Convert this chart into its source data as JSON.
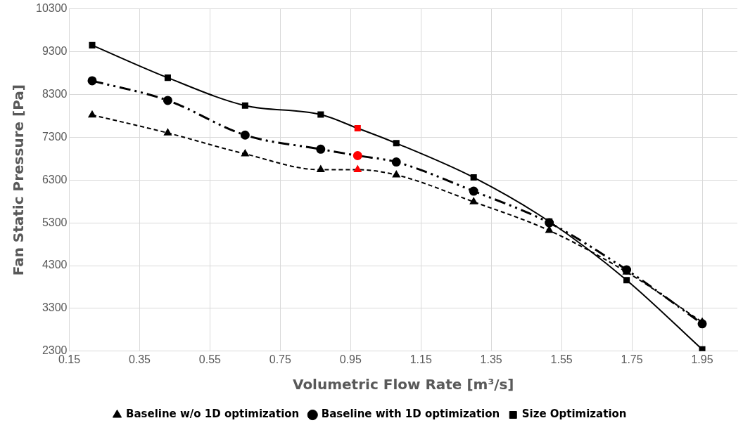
{
  "chart_data": {
    "type": "line",
    "xlabel": "Volumetric Flow Rate [m³/s]",
    "ylabel": "Fan Static Pressure [Pa]",
    "xlim": [
      0.15,
      2.05
    ],
    "xticks": [
      0.15,
      0.35,
      0.55,
      0.75,
      0.95,
      1.15,
      1.35,
      1.55,
      1.75,
      1.95
    ],
    "ylim": [
      2300,
      10300
    ],
    "yticks": [
      2300,
      3300,
      4300,
      5300,
      6300,
      7300,
      8300,
      9300,
      10300
    ],
    "grid": true,
    "legend": "bottom",
    "series": [
      {
        "name": "Baseline w/o 1D optimization",
        "color": "#000000",
        "marker": "triangle",
        "line_style": "dashed",
        "x": [
          0.215,
          0.43,
          0.65,
          0.865,
          0.97,
          1.08,
          1.3,
          1.515,
          1.735,
          1.95
        ],
        "values": [
          7820,
          7400,
          6910,
          6540,
          6540,
          6420,
          5790,
          5120,
          4150,
          2980
        ],
        "colors": [
          "#000000",
          "#000000",
          "#000000",
          "#000000",
          "#ff0000",
          "#000000",
          "#000000",
          "#000000",
          "#000000",
          "#000000"
        ]
      },
      {
        "name": "Baseline with 1D optimization",
        "color": "#000000",
        "marker": "circle",
        "line_style": "dashdot",
        "x": [
          0.215,
          0.43,
          0.65,
          0.865,
          0.97,
          1.08,
          1.3,
          1.515,
          1.735,
          1.95
        ],
        "values": [
          8620,
          8160,
          7350,
          7020,
          6870,
          6720,
          6040,
          5300,
          4200,
          2940
        ],
        "colors": [
          "#000000",
          "#000000",
          "#000000",
          "#000000",
          "#ff0000",
          "#000000",
          "#000000",
          "#000000",
          "#000000",
          "#000000"
        ]
      },
      {
        "name": "Size Optimization",
        "color": "#000000",
        "marker": "square",
        "line_style": "solid",
        "x": [
          0.215,
          0.43,
          0.65,
          0.865,
          0.97,
          1.08,
          1.3,
          1.515,
          1.735,
          1.95
        ],
        "values": [
          9450,
          8690,
          8040,
          7830,
          7510,
          7160,
          6360,
          5330,
          3960,
          2340
        ],
        "colors": [
          "#000000",
          "#000000",
          "#000000",
          "#000000",
          "#ff0000",
          "#000000",
          "#000000",
          "#000000",
          "#000000",
          "#000000"
        ]
      }
    ]
  }
}
